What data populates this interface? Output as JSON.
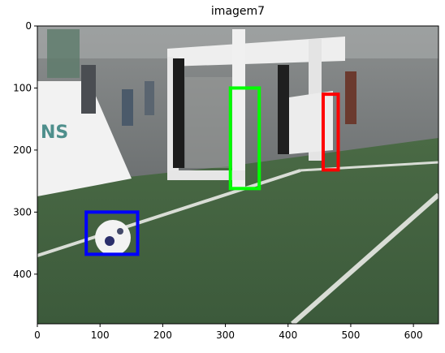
{
  "title": "imagem7",
  "image": {
    "description": "",
    "x_range": [
      0,
      640
    ],
    "y_range": [
      0,
      480
    ],
    "x_ticks": [
      "0",
      "100",
      "200",
      "300",
      "400",
      "500",
      "600"
    ],
    "y_ticks": [
      "0",
      "100",
      "200",
      "300",
      "400"
    ]
  },
  "boxes": [
    {
      "name": "ball-box",
      "color": "#0000ff",
      "x0": 78,
      "y0": 300,
      "x1": 160,
      "y1": 368
    },
    {
      "name": "green-post-box",
      "color": "#00ff00",
      "x0": 308,
      "y0": 100,
      "x1": 354,
      "y1": 262
    },
    {
      "name": "red-post-box",
      "color": "#ff0000",
      "x0": 456,
      "y0": 110,
      "x1": 480,
      "y1": 232
    }
  ]
}
